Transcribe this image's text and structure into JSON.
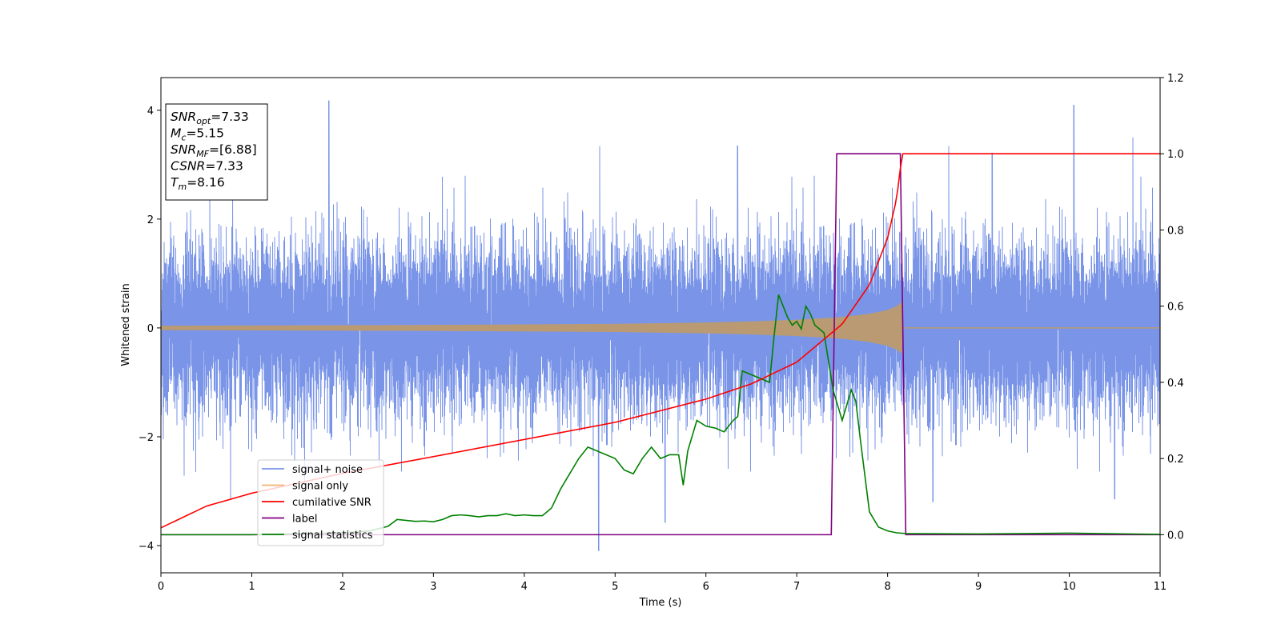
{
  "chart_data": {
    "type": "line",
    "title": "",
    "xlabel": "Time (s)",
    "ylabel": "Whitened strain",
    "y2label": "",
    "xlim": [
      0,
      11
    ],
    "ylim": [
      -4.5,
      4.6
    ],
    "y2lim": [
      -0.1,
      1.2
    ],
    "xticks": [
      0,
      1,
      2,
      3,
      4,
      5,
      6,
      7,
      8,
      9,
      10,
      11
    ],
    "yticks": [
      -4,
      -2,
      0,
      2,
      4
    ],
    "y2ticks": [
      0.0,
      0.2,
      0.4,
      0.6,
      0.8,
      1.0,
      1.2
    ],
    "grid": false,
    "legend_position": "lower-left",
    "series": [
      {
        "name": "signal+ noise",
        "axis": "left",
        "color": "#7a95e8",
        "render": "noise",
        "approx_std": 0.78,
        "approx_range": [
          -4.1,
          4.2
        ],
        "notable_peaks": [
          {
            "x": 1.85,
            "y": 4.18
          },
          {
            "x": 10.05,
            "y": 4.1
          },
          {
            "x": 4.82,
            "y": -4.1
          },
          {
            "x": 9.15,
            "y": 3.22
          },
          {
            "x": 6.35,
            "y": 3.35
          },
          {
            "x": 10.7,
            "y": 3.5
          },
          {
            "x": 5.55,
            "y": -3.58
          },
          {
            "x": 8.5,
            "y": -3.2
          },
          {
            "x": 10.5,
            "y": -3.15
          }
        ]
      },
      {
        "name": "signal only",
        "axis": "left",
        "color": "#f5b271",
        "x": [
          0,
          1,
          2,
          3,
          4,
          5,
          6,
          6.5,
          7,
          7.5,
          7.8,
          8.0,
          8.1,
          8.16,
          8.17,
          11
        ],
        "envelope": [
          0.04,
          0.045,
          0.05,
          0.055,
          0.065,
          0.075,
          0.1,
          0.12,
          0.15,
          0.2,
          0.26,
          0.33,
          0.4,
          0.48,
          0,
          0
        ]
      },
      {
        "name": "cumilative SNR",
        "axis": "right",
        "color": "#ff0000",
        "x": [
          0,
          0.5,
          1,
          2,
          3,
          4,
          5,
          6,
          6.5,
          7,
          7.5,
          7.8,
          8.0,
          8.1,
          8.16,
          8.2,
          11
        ],
        "values": [
          0.018,
          0.075,
          0.109,
          0.161,
          0.205,
          0.25,
          0.295,
          0.356,
          0.396,
          0.453,
          0.553,
          0.656,
          0.779,
          0.883,
          1.0,
          1.0,
          1.0
        ]
      },
      {
        "name": "label",
        "axis": "right",
        "color": "#800080",
        "x": [
          0,
          7.38,
          7.44,
          8.14,
          8.2,
          11
        ],
        "values": [
          0,
          0,
          1,
          1,
          0,
          0
        ]
      },
      {
        "name": "signal statistics",
        "axis": "right",
        "color": "#008000",
        "x": [
          0,
          1,
          2,
          2.3,
          2.5,
          2.6,
          2.8,
          2.9,
          3.0,
          3.1,
          3.2,
          3.3,
          3.4,
          3.5,
          3.6,
          3.7,
          3.8,
          3.9,
          4.0,
          4.1,
          4.2,
          4.3,
          4.4,
          4.5,
          4.6,
          4.7,
          4.8,
          4.9,
          5.0,
          5.1,
          5.2,
          5.3,
          5.4,
          5.5,
          5.6,
          5.7,
          5.75,
          5.8,
          5.9,
          6.0,
          6.1,
          6.2,
          6.3,
          6.35,
          6.4,
          6.5,
          6.6,
          6.7,
          6.75,
          6.8,
          6.85,
          6.9,
          6.95,
          7.0,
          7.05,
          7.1,
          7.15,
          7.2,
          7.3,
          7.4,
          7.5,
          7.55,
          7.6,
          7.65,
          7.7,
          7.8,
          7.9,
          8.0,
          8.1,
          8.2,
          9.0,
          10.0,
          11.0
        ],
        "values": [
          0.0,
          0.0,
          0.005,
          0.01,
          0.022,
          0.04,
          0.035,
          0.036,
          0.034,
          0.04,
          0.05,
          0.052,
          0.05,
          0.047,
          0.05,
          0.05,
          0.055,
          0.05,
          0.052,
          0.05,
          0.05,
          0.07,
          0.12,
          0.16,
          0.2,
          0.23,
          0.22,
          0.21,
          0.2,
          0.17,
          0.16,
          0.2,
          0.23,
          0.2,
          0.21,
          0.21,
          0.13,
          0.22,
          0.3,
          0.285,
          0.28,
          0.27,
          0.3,
          0.31,
          0.43,
          0.42,
          0.41,
          0.4,
          0.52,
          0.63,
          0.6,
          0.57,
          0.55,
          0.56,
          0.54,
          0.6,
          0.58,
          0.55,
          0.53,
          0.38,
          0.3,
          0.34,
          0.38,
          0.35,
          0.25,
          0.06,
          0.02,
          0.01,
          0.005,
          0.003,
          0.002,
          0.004,
          0.001
        ]
      }
    ],
    "annotation_box": [
      {
        "name": "SNR",
        "sub": "opt",
        "text": "=7.33"
      },
      {
        "name": "M",
        "sub": "c",
        "text": "=5.15"
      },
      {
        "name": "SNR",
        "sub": "MF",
        "text": "=[6.88]"
      },
      {
        "name": "CSNR",
        "sub": "",
        "text": "=7.33"
      },
      {
        "name": "T",
        "sub": "m",
        "text": "=8.16"
      }
    ]
  }
}
